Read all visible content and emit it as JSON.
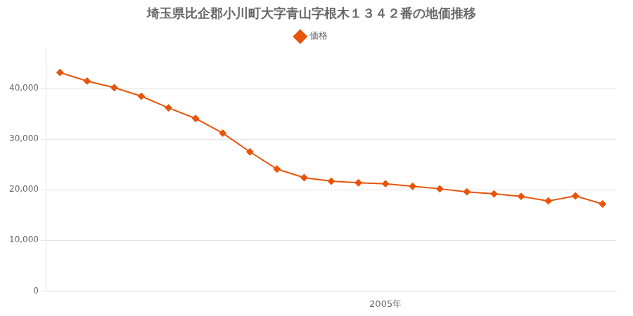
{
  "chart_data": {
    "type": "line",
    "title": "埼玉県比企郡小川町大字青山字根木１３４２番の地価推移",
    "x": [
      1993,
      1994,
      1995,
      1996,
      1997,
      1998,
      1999,
      2000,
      2001,
      2002,
      2003,
      2004,
      2005,
      2006,
      2007,
      2008,
      2009,
      2010,
      2011,
      2012,
      2013
    ],
    "series": [
      {
        "name": "価格",
        "color": "#e8540a",
        "marker": "diamond",
        "values": [
          43200,
          41500,
          40200,
          38500,
          36200,
          34100,
          31200,
          27500,
          24100,
          22400,
          21700,
          21400,
          21200,
          20700,
          20200,
          19600,
          19200,
          18700,
          17800,
          18800,
          17200
        ]
      }
    ],
    "xlim": [
      1992.5,
      2013.5
    ],
    "xticks": [
      {
        "value": 2005,
        "label": "2005年"
      }
    ],
    "ylim": [
      0,
      48000
    ],
    "yticks": [
      0,
      {
        "value": 10000,
        "label": "10,000"
      },
      {
        "value": 20000,
        "label": "20,000"
      },
      {
        "value": 30000,
        "label": "30,000"
      },
      {
        "value": 40000,
        "label": "40,000"
      }
    ],
    "grid": "y",
    "legend": "top"
  }
}
